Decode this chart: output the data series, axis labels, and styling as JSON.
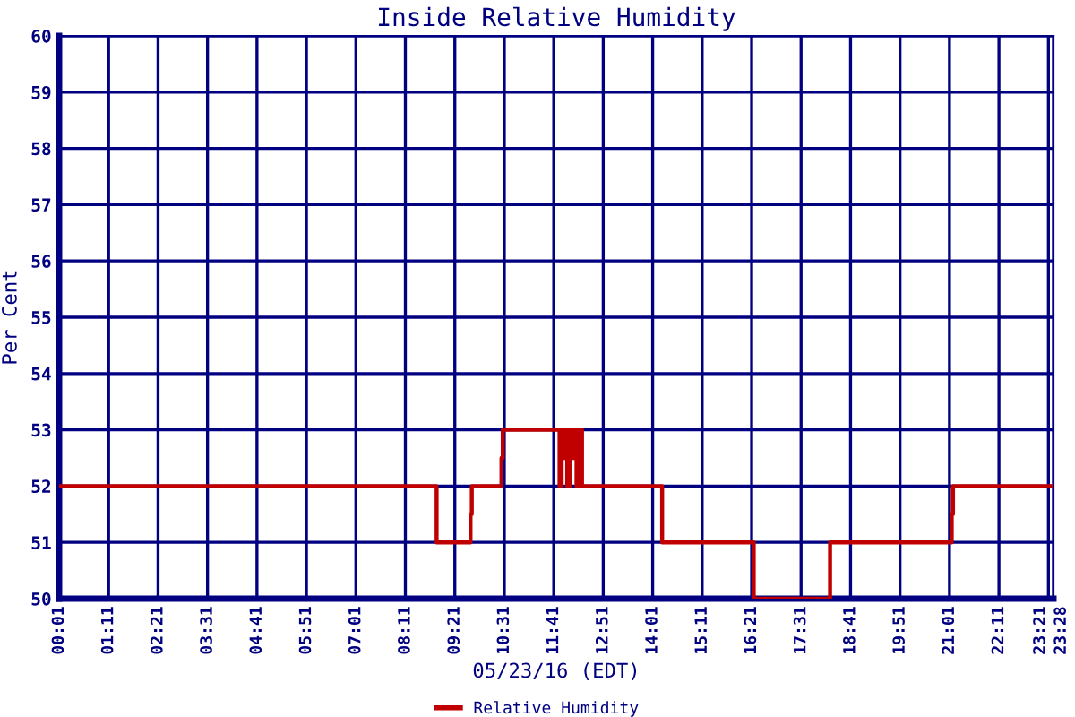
{
  "chart_data": {
    "type": "step",
    "title": "Inside Relative Humidity",
    "xlabel": "05/23/16 (EDT)",
    "ylabel": "Per Cent",
    "x": [
      0.0167,
      8.92,
      9.72,
      9.75,
      10.45,
      10.48,
      11.82,
      11.87,
      11.9,
      11.95,
      12.0,
      12.07,
      12.12,
      12.17,
      12.22,
      12.3,
      12.35,
      14.24,
      16.4,
      18.2,
      21.07,
      21.1,
      23.47
    ],
    "series": [
      {
        "name": "Relative Humidity",
        "color": "#c00000",
        "values": [
          52,
          51,
          51.5,
          52,
          52.5,
          53,
          52,
          53,
          52.5,
          53,
          52,
          53,
          52.5,
          53,
          52,
          53,
          52,
          51,
          50,
          51,
          51.5,
          52,
          52
        ]
      }
    ],
    "xlim": [
      0.0167,
      23.47
    ],
    "xticks": [
      {
        "value": 0.0167,
        "label": "00:01"
      },
      {
        "value": 1.1833,
        "label": "01:11"
      },
      {
        "value": 2.35,
        "label": "02:21"
      },
      {
        "value": 3.5167,
        "label": "03:31"
      },
      {
        "value": 4.6833,
        "label": "04:41"
      },
      {
        "value": 5.85,
        "label": "05:51"
      },
      {
        "value": 7.0167,
        "label": "07:01"
      },
      {
        "value": 8.1833,
        "label": "08:11"
      },
      {
        "value": 9.35,
        "label": "09:21"
      },
      {
        "value": 10.5167,
        "label": "10:31"
      },
      {
        "value": 11.6833,
        "label": "11:41"
      },
      {
        "value": 12.85,
        "label": "12:51"
      },
      {
        "value": 14.0167,
        "label": "14:01"
      },
      {
        "value": 15.1833,
        "label": "15:11"
      },
      {
        "value": 16.35,
        "label": "16:21"
      },
      {
        "value": 17.5167,
        "label": "17:31"
      },
      {
        "value": 18.6833,
        "label": "18:41"
      },
      {
        "value": 19.85,
        "label": "19:51"
      },
      {
        "value": 21.0167,
        "label": "21:01"
      },
      {
        "value": 22.1833,
        "label": "22:11"
      },
      {
        "value": 23.35,
        "label": "23:21"
      },
      {
        "value": 23.47,
        "label": "23:28"
      }
    ],
    "ylim": [
      50,
      60
    ],
    "yticks": [
      50,
      51,
      52,
      53,
      54,
      55,
      56,
      57,
      58,
      59,
      60
    ],
    "grid": true,
    "legend": "bottom",
    "line_style": "solid",
    "marker": "none"
  }
}
